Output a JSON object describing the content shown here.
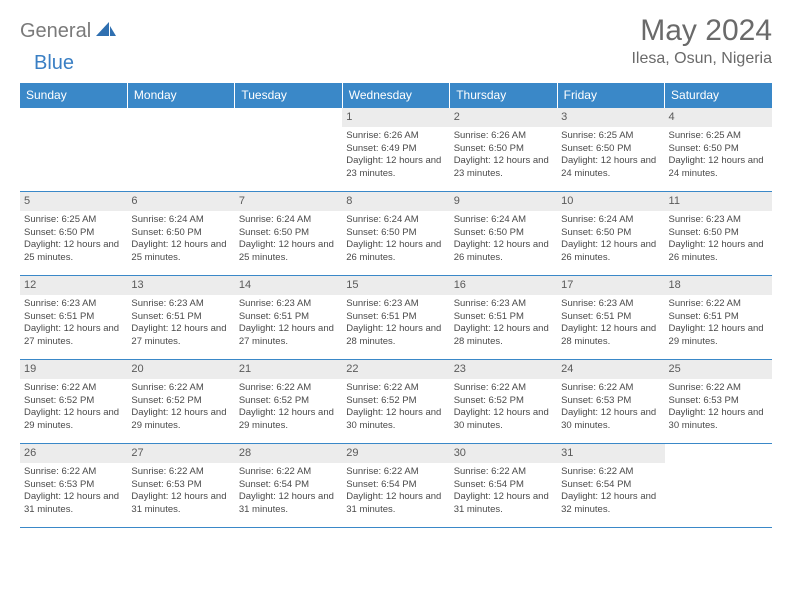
{
  "logo": {
    "part1": "General",
    "part2": "Blue"
  },
  "title": "May 2024",
  "location": "Ilesa, Osun, Nigeria",
  "header_bg": "#3a88c8",
  "daynum_bg": "#ececec",
  "days": [
    "Sunday",
    "Monday",
    "Tuesday",
    "Wednesday",
    "Thursday",
    "Friday",
    "Saturday"
  ],
  "weeks": [
    [
      {
        "n": "",
        "sr": "",
        "ss": "",
        "dl": ""
      },
      {
        "n": "",
        "sr": "",
        "ss": "",
        "dl": ""
      },
      {
        "n": "",
        "sr": "",
        "ss": "",
        "dl": ""
      },
      {
        "n": "1",
        "sr": "6:26 AM",
        "ss": "6:49 PM",
        "dl": "12 hours and 23 minutes."
      },
      {
        "n": "2",
        "sr": "6:26 AM",
        "ss": "6:50 PM",
        "dl": "12 hours and 23 minutes."
      },
      {
        "n": "3",
        "sr": "6:25 AM",
        "ss": "6:50 PM",
        "dl": "12 hours and 24 minutes."
      },
      {
        "n": "4",
        "sr": "6:25 AM",
        "ss": "6:50 PM",
        "dl": "12 hours and 24 minutes."
      }
    ],
    [
      {
        "n": "5",
        "sr": "6:25 AM",
        "ss": "6:50 PM",
        "dl": "12 hours and 25 minutes."
      },
      {
        "n": "6",
        "sr": "6:24 AM",
        "ss": "6:50 PM",
        "dl": "12 hours and 25 minutes."
      },
      {
        "n": "7",
        "sr": "6:24 AM",
        "ss": "6:50 PM",
        "dl": "12 hours and 25 minutes."
      },
      {
        "n": "8",
        "sr": "6:24 AM",
        "ss": "6:50 PM",
        "dl": "12 hours and 26 minutes."
      },
      {
        "n": "9",
        "sr": "6:24 AM",
        "ss": "6:50 PM",
        "dl": "12 hours and 26 minutes."
      },
      {
        "n": "10",
        "sr": "6:24 AM",
        "ss": "6:50 PM",
        "dl": "12 hours and 26 minutes."
      },
      {
        "n": "11",
        "sr": "6:23 AM",
        "ss": "6:50 PM",
        "dl": "12 hours and 26 minutes."
      }
    ],
    [
      {
        "n": "12",
        "sr": "6:23 AM",
        "ss": "6:51 PM",
        "dl": "12 hours and 27 minutes."
      },
      {
        "n": "13",
        "sr": "6:23 AM",
        "ss": "6:51 PM",
        "dl": "12 hours and 27 minutes."
      },
      {
        "n": "14",
        "sr": "6:23 AM",
        "ss": "6:51 PM",
        "dl": "12 hours and 27 minutes."
      },
      {
        "n": "15",
        "sr": "6:23 AM",
        "ss": "6:51 PM",
        "dl": "12 hours and 28 minutes."
      },
      {
        "n": "16",
        "sr": "6:23 AM",
        "ss": "6:51 PM",
        "dl": "12 hours and 28 minutes."
      },
      {
        "n": "17",
        "sr": "6:23 AM",
        "ss": "6:51 PM",
        "dl": "12 hours and 28 minutes."
      },
      {
        "n": "18",
        "sr": "6:22 AM",
        "ss": "6:51 PM",
        "dl": "12 hours and 29 minutes."
      }
    ],
    [
      {
        "n": "19",
        "sr": "6:22 AM",
        "ss": "6:52 PM",
        "dl": "12 hours and 29 minutes."
      },
      {
        "n": "20",
        "sr": "6:22 AM",
        "ss": "6:52 PM",
        "dl": "12 hours and 29 minutes."
      },
      {
        "n": "21",
        "sr": "6:22 AM",
        "ss": "6:52 PM",
        "dl": "12 hours and 29 minutes."
      },
      {
        "n": "22",
        "sr": "6:22 AM",
        "ss": "6:52 PM",
        "dl": "12 hours and 30 minutes."
      },
      {
        "n": "23",
        "sr": "6:22 AM",
        "ss": "6:52 PM",
        "dl": "12 hours and 30 minutes."
      },
      {
        "n": "24",
        "sr": "6:22 AM",
        "ss": "6:53 PM",
        "dl": "12 hours and 30 minutes."
      },
      {
        "n": "25",
        "sr": "6:22 AM",
        "ss": "6:53 PM",
        "dl": "12 hours and 30 minutes."
      }
    ],
    [
      {
        "n": "26",
        "sr": "6:22 AM",
        "ss": "6:53 PM",
        "dl": "12 hours and 31 minutes."
      },
      {
        "n": "27",
        "sr": "6:22 AM",
        "ss": "6:53 PM",
        "dl": "12 hours and 31 minutes."
      },
      {
        "n": "28",
        "sr": "6:22 AM",
        "ss": "6:54 PM",
        "dl": "12 hours and 31 minutes."
      },
      {
        "n": "29",
        "sr": "6:22 AM",
        "ss": "6:54 PM",
        "dl": "12 hours and 31 minutes."
      },
      {
        "n": "30",
        "sr": "6:22 AM",
        "ss": "6:54 PM",
        "dl": "12 hours and 31 minutes."
      },
      {
        "n": "31",
        "sr": "6:22 AM",
        "ss": "6:54 PM",
        "dl": "12 hours and 32 minutes."
      },
      {
        "n": "",
        "sr": "",
        "ss": "",
        "dl": ""
      }
    ]
  ],
  "labels": {
    "sunrise": "Sunrise:",
    "sunset": "Sunset:",
    "daylight": "Daylight:"
  }
}
